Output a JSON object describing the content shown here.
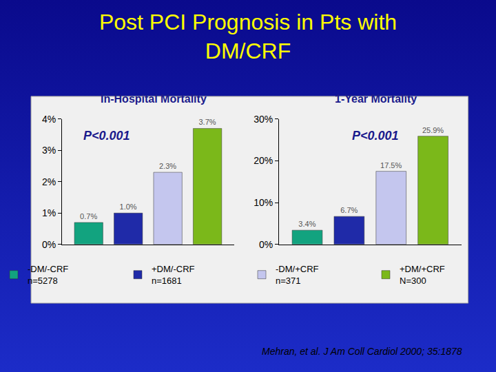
{
  "title": "Post PCI Prognosis in Pts with\nDM/CRF",
  "source": "Mehran, et al. J Am Coll Cardiol 2000; 35:1878",
  "chart_data": [
    {
      "type": "bar",
      "title": "In-Hospital Mortality",
      "annotations": [
        "P<0.001"
      ],
      "categories": [
        null
      ],
      "series": [
        {
          "name": "-DM/-CRF\nn=5278",
          "color": "#12a37f",
          "values": [
            0.7
          ],
          "value_labels": [
            "0.7%"
          ]
        },
        {
          "name": "+DM/-CRF\nn=1681",
          "color": "#1f2aa8",
          "values": [
            1.0
          ],
          "value_labels": [
            "1.0%"
          ]
        },
        {
          "name": "-DM/+CRF\nn=371",
          "color": "#c4c6ee",
          "values": [
            2.3
          ],
          "value_labels": [
            "2.3%"
          ]
        },
        {
          "name": "+DM/+CRF\nN=300",
          "color": "#7bb81a",
          "values": [
            3.7
          ],
          "value_labels": [
            "3.7%"
          ]
        }
      ],
      "ylim": [
        0,
        4
      ],
      "yticks": [
        {
          "value": 0,
          "label": "0%"
        },
        {
          "value": 1,
          "label": "1%"
        },
        {
          "value": 2,
          "label": "2%"
        },
        {
          "value": 3,
          "label": "3%"
        },
        {
          "value": 4,
          "label": "4%"
        }
      ],
      "grid": false,
      "data_labels": true,
      "tick_labels": "y",
      "legend": "bottom"
    },
    {
      "type": "bar",
      "title": "1-Year Mortality",
      "annotations": [
        "P<0.001"
      ],
      "categories": [
        null
      ],
      "series": [
        {
          "name": "-DM/-CRF\nn=5278",
          "color": "#12a37f",
          "values": [
            3.4
          ],
          "value_labels": [
            "3.4%"
          ]
        },
        {
          "name": "+DM/-CRF\nn=1681",
          "color": "#1f2aa8",
          "values": [
            6.7
          ],
          "value_labels": [
            "6.7%"
          ]
        },
        {
          "name": "-DM/+CRF\nn=371",
          "color": "#c4c6ee",
          "values": [
            17.5
          ],
          "value_labels": [
            "17.5%"
          ]
        },
        {
          "name": "+DM/+CRF\nN=300",
          "color": "#7bb81a",
          "values": [
            25.9
          ],
          "value_labels": [
            "25.9%"
          ]
        }
      ],
      "ylim": [
        0,
        30
      ],
      "yticks": [
        {
          "value": 0,
          "label": "0%"
        },
        {
          "value": 10,
          "label": "10%"
        },
        {
          "value": 20,
          "label": "20%"
        },
        {
          "value": 30,
          "label": "30%"
        }
      ],
      "grid": false,
      "data_labels": true,
      "tick_labels": "y"
    }
  ]
}
